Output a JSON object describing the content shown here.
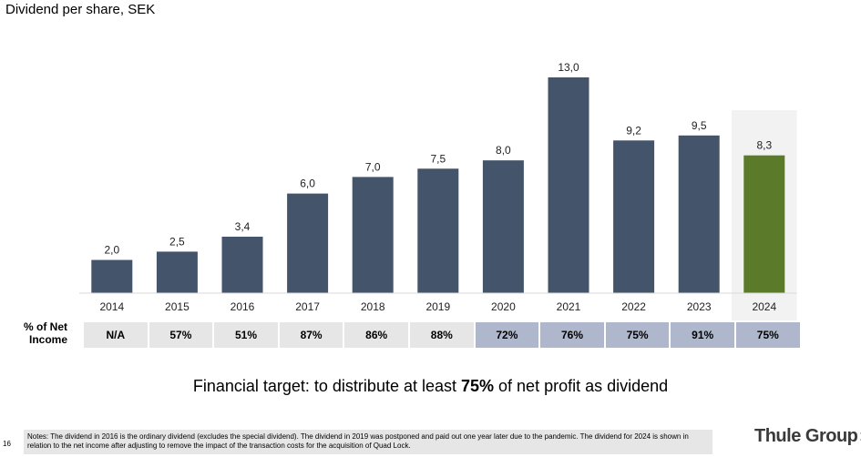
{
  "subtitle": "Dividend per share, SEK",
  "title_fragment": "",
  "chart_data": {
    "type": "bar",
    "categories": [
      "2014",
      "2015",
      "2016",
      "2017",
      "2018",
      "2019",
      "2020",
      "2021",
      "2022",
      "2023",
      "2024"
    ],
    "values": [
      2.0,
      2.5,
      3.4,
      6.0,
      7.0,
      7.5,
      8.0,
      13.0,
      9.2,
      9.5,
      8.3
    ],
    "value_labels": [
      "2,0",
      "2,5",
      "3,4",
      "6,0",
      "7,0",
      "7,5",
      "8,0",
      "13,0",
      "9,2",
      "9,5",
      "8,3"
    ],
    "ylim": [
      0,
      13.0
    ],
    "colors": {
      "bar": "#44546a",
      "highlight_bar": "#5b7b2b",
      "highlight_background": "#f2f2f2"
    },
    "highlight_index": 10,
    "grid": false
  },
  "net_income_row": {
    "label_line1": "% of Net",
    "label_line2": "Income",
    "values": [
      "N/A",
      "57%",
      "51%",
      "87%",
      "86%",
      "88%",
      "72%",
      "76%",
      "75%",
      "91%",
      "75%"
    ],
    "colors": {
      "gray": "#e6e6e6",
      "blue": "#aeb7cc"
    },
    "cell_color_keys": [
      "gray",
      "gray",
      "gray",
      "gray",
      "gray",
      "gray",
      "blue",
      "blue",
      "blue",
      "blue",
      "blue"
    ]
  },
  "target": {
    "prefix": "Financial target: to distribute at least ",
    "bold": "75%",
    "suffix": " of net profit as dividend"
  },
  "footer": {
    "page_number": "16",
    "notes": "Notes: The dividend in 2016 is the ordinary dividend (excludes the special dividend). The dividend in 2019 was postponed and paid out one year later due to the pandemic. The dividend for 2024 is shown in relation to the net income after adjusting to remove the impact of the transaction costs for the acquisition of Quad Lock.",
    "logo_text": "Thule Group",
    "logo_icon": "double-chevron-right-icon"
  }
}
